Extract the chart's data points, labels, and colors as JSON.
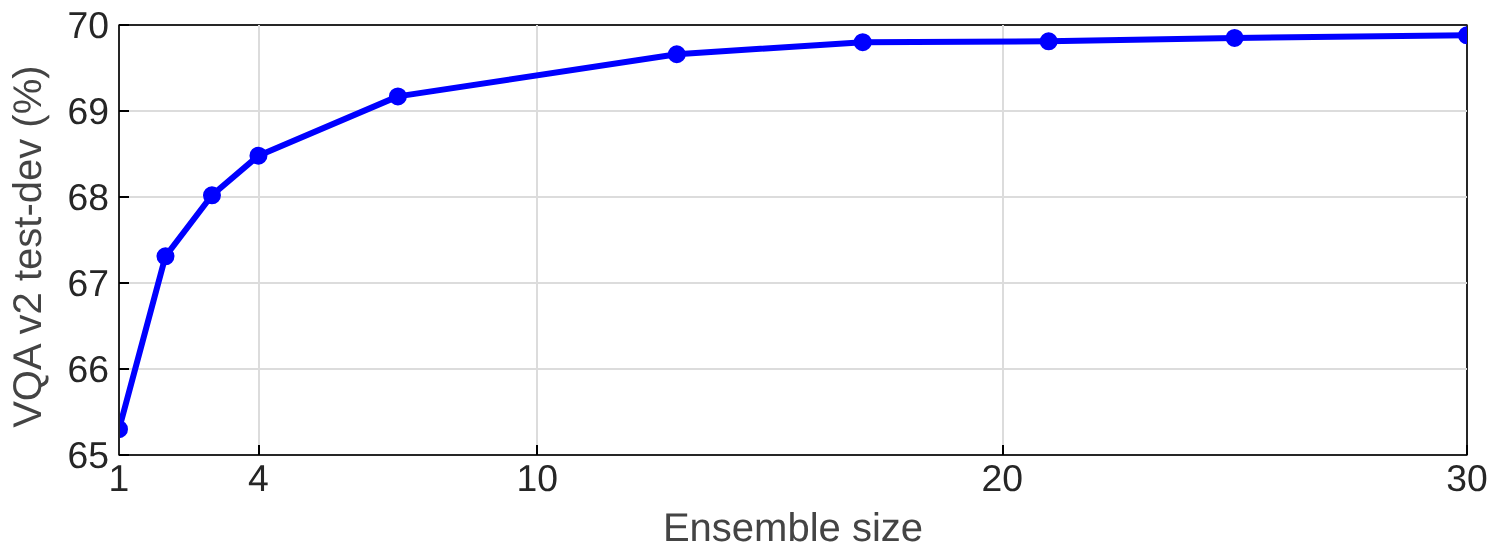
{
  "chart_data": {
    "type": "line",
    "xlabel": "Ensemble size",
    "ylabel": "VQA v2  test-dev (%)",
    "x": [
      1,
      2,
      3,
      4,
      7,
      13,
      17,
      21,
      25,
      30
    ],
    "series": [
      {
        "color": "#0000ff",
        "values": [
          65.3,
          67.31,
          68.02,
          68.48,
          69.17,
          69.66,
          69.8,
          69.81,
          69.85,
          69.88
        ]
      }
    ],
    "xlim": [
      1,
      30
    ],
    "ylim": [
      65,
      70
    ],
    "xticks": [
      1,
      4,
      10,
      20,
      30
    ],
    "yticks": [
      65,
      66,
      67,
      68,
      69,
      70
    ],
    "grid": true,
    "marker": "circle",
    "line_style": "solid"
  }
}
